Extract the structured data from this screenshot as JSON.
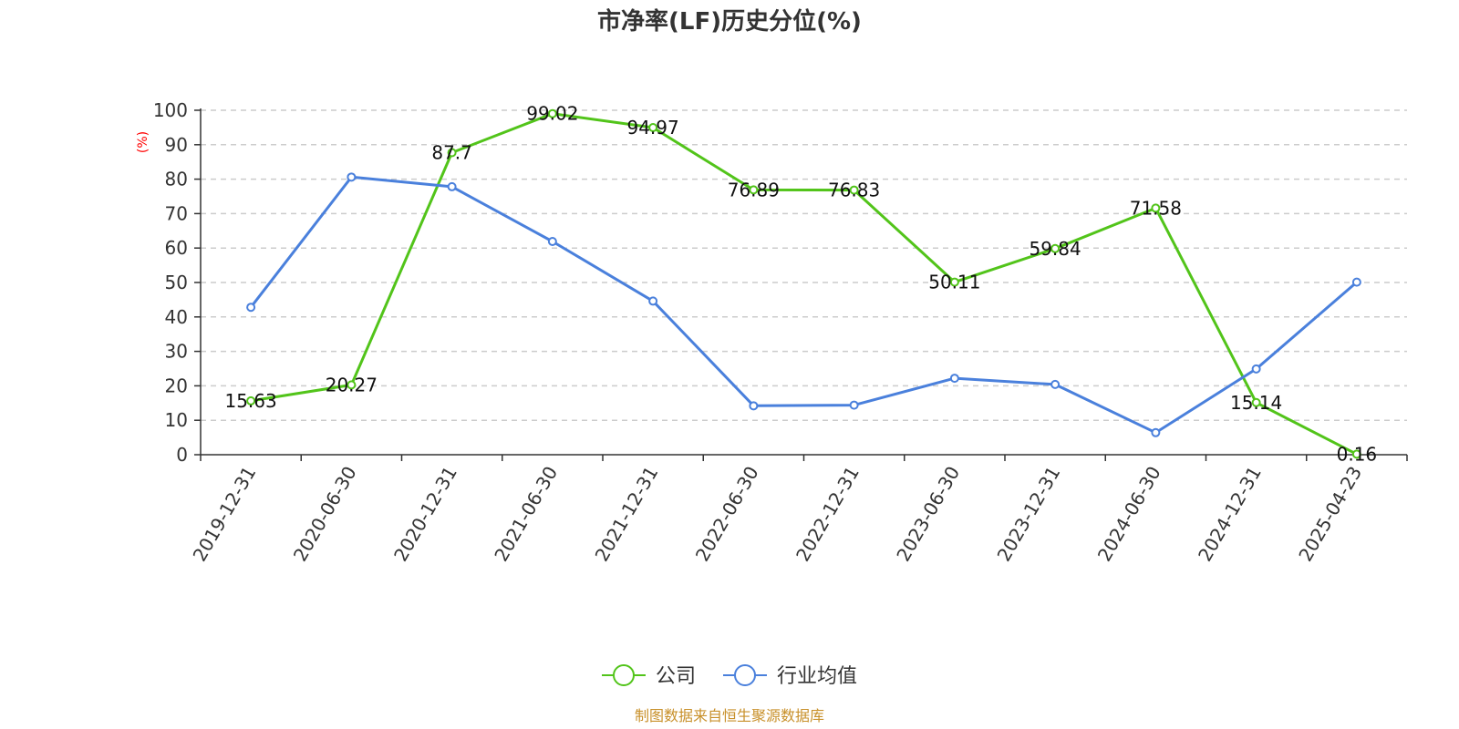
{
  "colors": {
    "company": "#52c41a",
    "industry": "#4a80dc",
    "source": "#c8902a",
    "unit": "#ff0000"
  },
  "chart_data": {
    "type": "line",
    "title": "市净率(LF)历史分位(%)",
    "ylabel": "(%)",
    "ylim": [
      0,
      100
    ],
    "yticks": [
      "0",
      "10",
      "20",
      "30",
      "40",
      "50",
      "60",
      "70",
      "80",
      "90",
      "100"
    ],
    "categories": [
      "2019-12-31",
      "2020-06-30",
      "2020-12-31",
      "2021-06-30",
      "2021-12-31",
      "2022-06-30",
      "2022-12-31",
      "2023-06-30",
      "2023-12-31",
      "2024-06-30",
      "2024-12-31",
      "2025-04-23"
    ],
    "series": [
      {
        "name": "公司",
        "color": "#52c41a",
        "values": [
          15.63,
          20.27,
          87.7,
          99.02,
          94.97,
          76.89,
          76.83,
          50.11,
          59.84,
          71.58,
          15.14,
          0.16
        ],
        "labels": [
          "15.63",
          "20.27",
          "87.7",
          "99.02",
          "94.97",
          "76.89",
          "76.83",
          "50.11",
          "59.84",
          "71.58",
          "15.14",
          "0.16"
        ]
      },
      {
        "name": "行业均值",
        "color": "#4a80dc",
        "values": [
          42.8,
          80.6,
          77.8,
          61.9,
          44.6,
          14.2,
          14.4,
          22.2,
          20.4,
          6.4,
          24.9,
          50.1
        ]
      }
    ],
    "grid": true,
    "legend": "bottom-center"
  },
  "footer": {
    "source": "制图数据来自恒生聚源数据库"
  }
}
